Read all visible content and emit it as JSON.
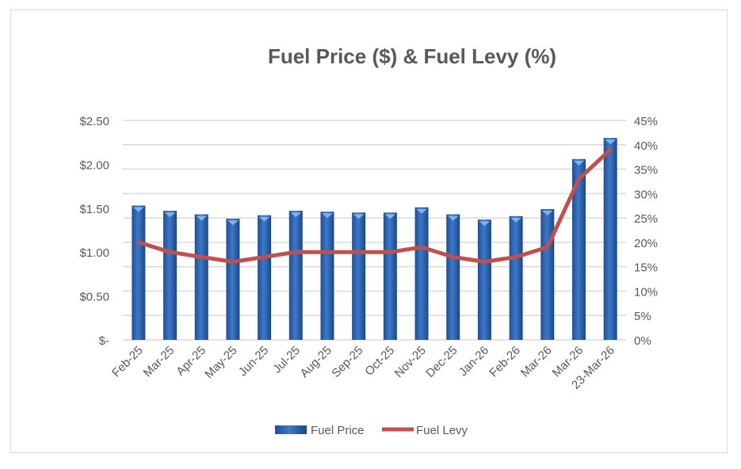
{
  "chart_data": {
    "type": "bar+line",
    "title": "Fuel Price ($) & Fuel Levy (%)",
    "categories": [
      "Feb-25",
      "Mar-25",
      "Apr-25",
      "May-25",
      "Jun-25",
      "Jul-25",
      "Aug-25",
      "Sep-25",
      "Oct-25",
      "Nov-25",
      "Dec-25",
      "Jan-26",
      "Feb-26",
      "Mar-26",
      "Mar-26",
      "23-Mar-26"
    ],
    "series": [
      {
        "name": "Fuel Price",
        "type": "bar",
        "axis": "left",
        "color": "#2e64ad",
        "values": [
          1.53,
          1.47,
          1.43,
          1.38,
          1.42,
          1.47,
          1.46,
          1.45,
          1.45,
          1.51,
          1.43,
          1.37,
          1.41,
          1.49,
          2.06,
          2.3
        ]
      },
      {
        "name": "Fuel Levy",
        "type": "line",
        "axis": "right",
        "color": "#c0504d",
        "values": [
          20,
          18,
          17,
          16,
          17,
          18,
          18,
          18,
          18,
          19,
          17,
          16,
          17,
          19,
          33,
          39
        ]
      }
    ],
    "y_left": {
      "min": 0,
      "max": 2.5,
      "ticks": [
        "$-",
        "$0.50",
        "$1.00",
        "$1.50",
        "$2.00",
        "$2.50"
      ]
    },
    "y_right": {
      "min": 0,
      "max": 45,
      "ticks": [
        "0%",
        "5%",
        "10%",
        "15%",
        "20%",
        "25%",
        "30%",
        "35%",
        "40%",
        "45%"
      ]
    },
    "grid": true,
    "legend": "bottom"
  }
}
